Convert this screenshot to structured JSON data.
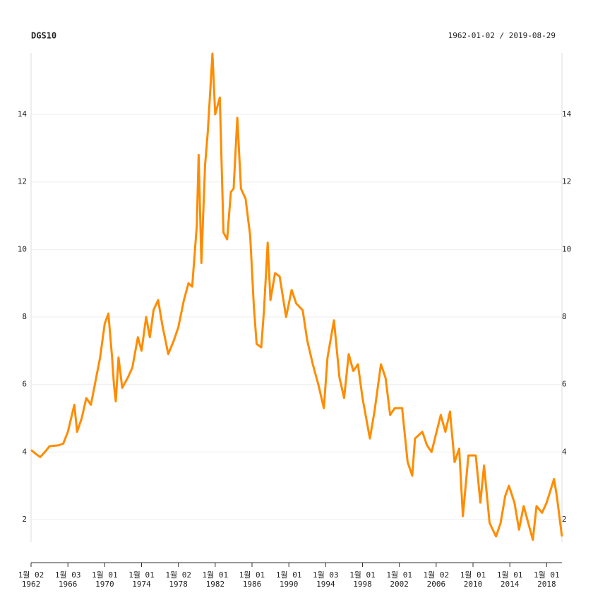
{
  "chart_data": {
    "type": "line",
    "title": "DGS10",
    "subtitle": "1962-01-02 / 2019-08-29",
    "xlim": [
      1962.0,
      2019.66
    ],
    "ylim": [
      1.33,
      15.82
    ],
    "xticks": [
      {
        "value": 1962,
        "label": "1월 02",
        "year": "1962"
      },
      {
        "value": 1966,
        "label": "1월 03",
        "year": "1966"
      },
      {
        "value": 1970,
        "label": "1월 01",
        "year": "1970"
      },
      {
        "value": 1974,
        "label": "1월 01",
        "year": "1974"
      },
      {
        "value": 1978,
        "label": "1월 02",
        "year": "1978"
      },
      {
        "value": 1982,
        "label": "1월 01",
        "year": "1982"
      },
      {
        "value": 1986,
        "label": "1월 01",
        "year": "1986"
      },
      {
        "value": 1990,
        "label": "1월 01",
        "year": "1990"
      },
      {
        "value": 1994,
        "label": "1월 03",
        "year": "1994"
      },
      {
        "value": 1998,
        "label": "1월 01",
        "year": "1998"
      },
      {
        "value": 2002,
        "label": "1월 01",
        "year": "2002"
      },
      {
        "value": 2006,
        "label": "1월 02",
        "year": "2006"
      },
      {
        "value": 2010,
        "label": "1월 01",
        "year": "2010"
      },
      {
        "value": 2014,
        "label": "1월 01",
        "year": "2014"
      },
      {
        "value": 2018,
        "label": "1월 01",
        "year": "2018"
      }
    ],
    "yticks": [
      2,
      4,
      6,
      8,
      10,
      12,
      14
    ],
    "grid": true,
    "series": [
      {
        "name": "DGS10",
        "color": "#ff8c00",
        "x": [
          1962.0,
          1962.5,
          1963,
          1963.5,
          1964,
          1965,
          1965.5,
          1966,
          1966.7,
          1967,
          1967.5,
          1968,
          1968.5,
          1969,
          1969.5,
          1970,
          1970.4,
          1970.8,
          1971,
          1971.2,
          1971.5,
          1971.9,
          1972.5,
          1973,
          1973.6,
          1974,
          1974.5,
          1974.9,
          1975.3,
          1975.8,
          1976.3,
          1976.9,
          1977.5,
          1978,
          1978.6,
          1979.1,
          1979.5,
          1980.0,
          1980.2,
          1980.5,
          1980.9,
          1981.2,
          1981.7,
          1982,
          1982.5,
          1982.9,
          1983.3,
          1983.7,
          1984.0,
          1984.4,
          1984.8,
          1985.3,
          1985.8,
          1986.2,
          1986.5,
          1987,
          1987.3,
          1987.7,
          1988,
          1988.5,
          1989,
          1989.7,
          1990.3,
          1990.8,
          1991.5,
          1992,
          1992.6,
          1993.2,
          1993.8,
          1994.2,
          1994.9,
          1995.5,
          1996,
          1996.5,
          1997,
          1997.5,
          1998,
          1998.8,
          1999.3,
          2000.0,
          2000.5,
          2001,
          2001.5,
          2002.3,
          2002.9,
          2003.4,
          2003.7,
          2004.5,
          2005,
          2005.5,
          2006.5,
          2007,
          2007.5,
          2008,
          2008.5,
          2008.9,
          2009.5,
          2010.3,
          2010.8,
          2011.2,
          2011.8,
          2012.5,
          2013,
          2013.5,
          2013.9,
          2014.5,
          2015,
          2015.5,
          2016.5,
          2016.9,
          2017.5,
          2018,
          2018.8,
          2019.1,
          2019.66
        ],
        "values": [
          4.06,
          3.95,
          3.85,
          4.0,
          4.17,
          4.2,
          4.25,
          4.6,
          5.4,
          4.6,
          5.0,
          5.6,
          5.4,
          6.1,
          6.8,
          7.8,
          8.1,
          6.8,
          6.0,
          5.5,
          6.8,
          5.9,
          6.2,
          6.5,
          7.4,
          7.0,
          8.0,
          7.4,
          8.2,
          8.5,
          7.7,
          6.9,
          7.3,
          7.7,
          8.5,
          9.0,
          8.9,
          10.7,
          12.8,
          9.6,
          12.5,
          13.5,
          15.8,
          14.0,
          14.5,
          10.5,
          10.3,
          11.7,
          11.8,
          13.9,
          11.8,
          11.5,
          10.4,
          8.3,
          7.2,
          7.1,
          8.2,
          10.2,
          8.5,
          9.3,
          9.2,
          8.0,
          8.8,
          8.4,
          8.2,
          7.3,
          6.6,
          6.0,
          5.3,
          6.8,
          7.9,
          6.2,
          5.6,
          6.9,
          6.4,
          6.6,
          5.6,
          4.4,
          5.2,
          6.6,
          6.2,
          5.1,
          5.3,
          5.3,
          3.7,
          3.3,
          4.4,
          4.6,
          4.2,
          4.0,
          5.1,
          4.6,
          5.2,
          3.7,
          4.1,
          2.1,
          3.9,
          3.9,
          2.5,
          3.6,
          1.9,
          1.5,
          1.9,
          2.7,
          3.0,
          2.5,
          1.7,
          2.4,
          1.4,
          2.4,
          2.2,
          2.5,
          3.2,
          2.7,
          1.5
        ]
      }
    ]
  }
}
